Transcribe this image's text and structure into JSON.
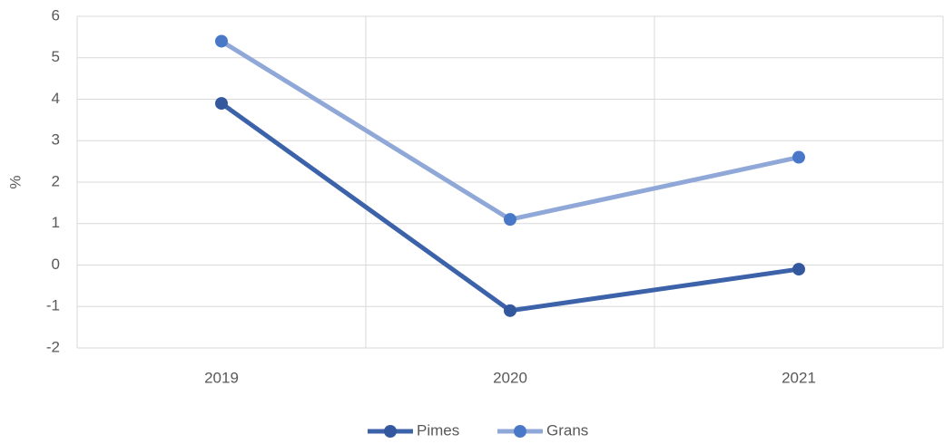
{
  "chart_data": {
    "type": "line",
    "y_label": "%",
    "categories": [
      "2019",
      "2020",
      "2021"
    ],
    "series": [
      {
        "name": "Pimes",
        "color": "#3c62aa",
        "marker_color": "#34589e",
        "values": [
          3.9,
          -1.1,
          -0.1
        ]
      },
      {
        "name": "Grans",
        "color": "#8fa8d8",
        "marker_color": "#4a78c9",
        "values": [
          5.4,
          1.1,
          2.6
        ]
      }
    ],
    "ylim": [
      -2,
      6
    ],
    "yticks": [
      -2,
      -1,
      0,
      1,
      2,
      3,
      4,
      5,
      6
    ],
    "grid": true,
    "legend": "bottom"
  }
}
